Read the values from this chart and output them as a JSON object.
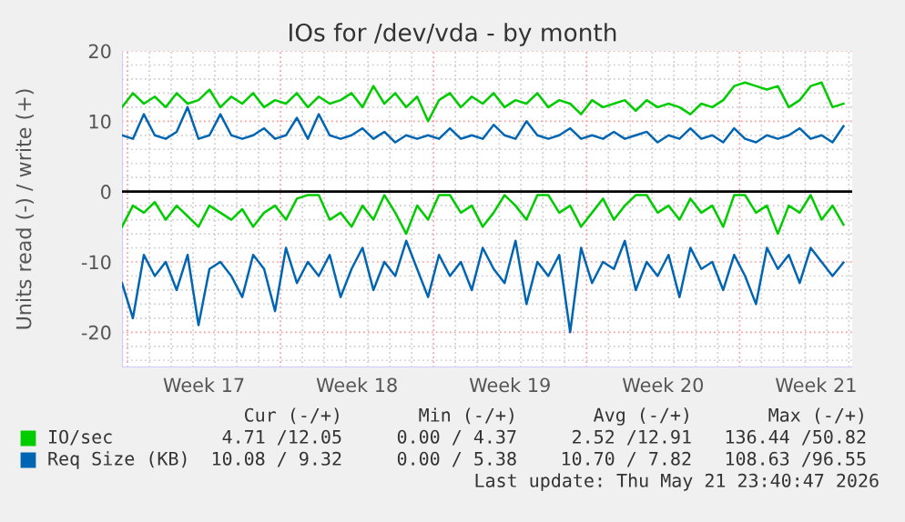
{
  "chart_data": {
    "type": "line",
    "title": "IOs for /dev/vda - by month",
    "ylabel": "Units read (-) / write (+)",
    "x": [
      "2026-04-19T18:00",
      "2026-04-20T06:00",
      "2026-04-20T18:00",
      "2026-04-21T06:00",
      "2026-04-21T18:00",
      "2026-04-22T06:00",
      "2026-04-22T18:00",
      "2026-04-23T06:00",
      "2026-04-23T18:00",
      "2026-04-24T06:00",
      "2026-04-24T18:00",
      "2026-04-25T06:00",
      "2026-04-25T18:00",
      "2026-04-26T06:00",
      "2026-04-26T18:00",
      "2026-04-27T06:00",
      "2026-04-27T18:00",
      "2026-04-28T06:00",
      "2026-04-28T18:00",
      "2026-04-29T06:00",
      "2026-04-29T18:00",
      "2026-04-30T06:00",
      "2026-04-30T18:00",
      "2026-05-01T06:00",
      "2026-05-01T18:00",
      "2026-05-02T06:00",
      "2026-05-02T18:00",
      "2026-05-03T06:00",
      "2026-05-03T18:00",
      "2026-05-04T06:00",
      "2026-05-04T18:00",
      "2026-05-05T06:00",
      "2026-05-05T18:00",
      "2026-05-06T06:00",
      "2026-05-06T18:00",
      "2026-05-07T06:00",
      "2026-05-07T18:00",
      "2026-05-08T06:00",
      "2026-05-08T18:00",
      "2026-05-09T06:00",
      "2026-05-09T18:00",
      "2026-05-10T06:00",
      "2026-05-10T18:00",
      "2026-05-11T06:00",
      "2026-05-11T18:00",
      "2026-05-12T06:00",
      "2026-05-12T18:00",
      "2026-05-13T06:00",
      "2026-05-13T18:00",
      "2026-05-14T06:00",
      "2026-05-14T18:00",
      "2026-05-15T06:00",
      "2026-05-15T18:00",
      "2026-05-16T06:00",
      "2026-05-16T18:00",
      "2026-05-17T06:00",
      "2026-05-17T18:00",
      "2026-05-18T06:00",
      "2026-05-18T18:00",
      "2026-05-19T06:00",
      "2026-05-19T18:00",
      "2026-05-20T06:00",
      "2026-05-20T18:00",
      "2026-05-21T06:00",
      "2026-05-21T18:00",
      "2026-05-22T06:00",
      "2026-05-22T18:00"
    ],
    "series": [
      {
        "name": "IO/sec",
        "color": "#00cc00",
        "values": [
          12,
          14,
          12.5,
          13.5,
          12,
          14,
          12.5,
          13,
          14.5,
          12,
          13.5,
          12.5,
          14,
          12,
          13,
          12.5,
          14,
          12,
          13.5,
          12.5,
          13,
          14,
          12,
          15,
          12.5,
          14,
          12,
          13.5,
          10,
          13,
          14,
          12,
          13.5,
          12.5,
          14,
          12,
          13,
          12.5,
          14,
          12,
          13,
          12.5,
          11,
          13,
          12,
          12.5,
          13,
          11.5,
          13,
          12,
          12.5,
          12,
          11,
          12.5,
          12,
          13,
          15,
          15.5,
          15,
          14.5,
          15,
          12,
          13,
          15,
          15.5,
          12,
          12.5
        ]
      },
      {
        "color": "#00cc00",
        "values": [
          -5,
          -2,
          -3,
          -1.5,
          -4,
          -2,
          -3.5,
          -5,
          -2,
          -3,
          -4,
          -2.5,
          -5,
          -3,
          -2,
          -4,
          -1,
          -0.5,
          -0.5,
          -4,
          -3,
          -5,
          -2,
          -4,
          -0.5,
          -3,
          -6,
          -2,
          -4,
          -0.5,
          -0.5,
          -3,
          -2,
          -5,
          -3,
          -0.5,
          -2,
          -4,
          -0.5,
          -0.5,
          -3,
          -2,
          -5,
          -3,
          -1,
          -4,
          -2,
          -0.5,
          -0.5,
          -3,
          -2,
          -4,
          -1,
          -3,
          -2,
          -5,
          -0.5,
          -0.5,
          -3,
          -2,
          -6,
          -2,
          -3,
          -0.5,
          -4,
          -2,
          -4.7
        ]
      },
      {
        "name": "Req Size (KB)",
        "color": "#0066b3",
        "values": [
          8,
          7.5,
          11,
          8,
          7.5,
          8.5,
          12,
          7.5,
          8,
          11,
          8,
          7.5,
          8,
          9,
          7.5,
          8,
          10.5,
          7.5,
          11,
          8,
          7.5,
          8,
          9,
          7.5,
          8.5,
          7,
          8,
          7.5,
          8,
          7.5,
          9,
          7.5,
          8,
          7.5,
          9.5,
          8,
          7.5,
          10,
          8,
          7.5,
          8,
          9,
          7.5,
          8,
          7.5,
          8.5,
          7.5,
          8,
          8.5,
          7,
          8,
          7.5,
          9,
          7.5,
          8,
          7,
          9,
          7.5,
          7,
          8,
          7.5,
          8,
          9,
          7.5,
          8,
          7,
          9.3
        ]
      },
      {
        "color": "#0066b3",
        "values": [
          -13,
          -18,
          -9,
          -12,
          -10,
          -14,
          -9,
          -19,
          -11,
          -10,
          -12,
          -15,
          -9,
          -11,
          -17,
          -8,
          -13,
          -10,
          -12,
          -9,
          -15,
          -11,
          -8,
          -14,
          -10,
          -12,
          -7,
          -11,
          -15,
          -9,
          -12,
          -10,
          -14,
          -8,
          -11,
          -13,
          -7,
          -16,
          -10,
          -12,
          -9,
          -20,
          -8,
          -13,
          -10,
          -11,
          -7,
          -14,
          -10,
          -12,
          -9,
          -15,
          -8,
          -11,
          -10,
          -14,
          -9,
          -12,
          -16,
          -8,
          -11,
          -9,
          -13,
          -8,
          -10,
          -12,
          -10.1
        ]
      }
    ],
    "xlim": [
      "2026-04-19T18:00",
      "2026-05-23T03:36"
    ],
    "xticks": [
      {
        "value": "2026-04-20T00:00",
        "label": null
      },
      {
        "value": "2026-04-23T12:00",
        "label": "Week 17"
      },
      {
        "value": "2026-04-27T00:00",
        "label": null
      },
      {
        "value": "2026-04-30T12:00",
        "label": "Week 18"
      },
      {
        "value": "2026-05-04T00:00",
        "label": null
      },
      {
        "value": "2026-05-07T12:00",
        "label": "Week 19"
      },
      {
        "value": "2026-05-11T00:00",
        "label": null
      },
      {
        "value": "2026-05-14T12:00",
        "label": "Week 20"
      },
      {
        "value": "2026-05-18T00:00",
        "label": null
      },
      {
        "value": "2026-05-21T12:00",
        "label": "Week 21"
      }
    ],
    "ylim": [
      -25,
      20
    ],
    "yticks": [
      -20,
      -10,
      0,
      10,
      20
    ],
    "ref_lines": [
      {
        "axis": "y",
        "value": 0,
        "color": "#000000"
      }
    ],
    "grid": true,
    "legend": "bottom",
    "annotations": [
      "Cur (-/+)",
      "Min (-/+)",
      "Avg (-/+)",
      "Max (-/+)",
      "4.71 /12.05",
      "0.00 / 4.37",
      "2.52 /12.91",
      "136.44 /50.82",
      "10.08 / 9.32",
      "0.00 / 5.38",
      "10.70 / 7.82",
      "108.63 /96.55",
      "Last update: Thu May 21 23:40:47 2026"
    ]
  }
}
